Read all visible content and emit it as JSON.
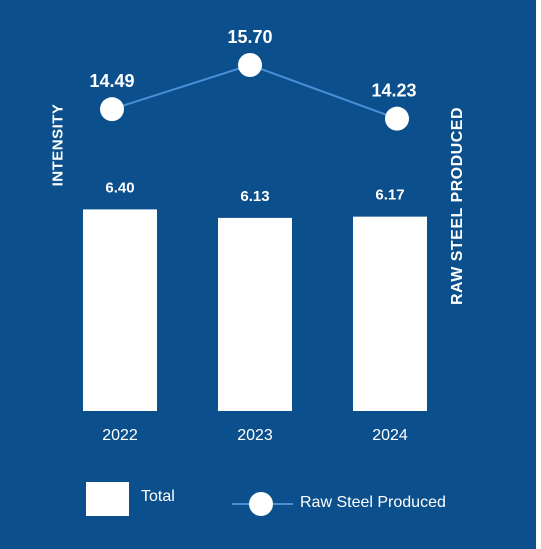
{
  "chart_data": {
    "type": "bar",
    "categories": [
      "2022",
      "2023",
      "2024"
    ],
    "series": [
      {
        "name": "Total",
        "type": "bar",
        "values": [
          6.4,
          6.13,
          6.17
        ]
      },
      {
        "name": "Raw Steel Produced",
        "type": "line",
        "values": [
          14.49,
          15.7,
          14.23
        ]
      }
    ],
    "value_labels": {
      "bars": [
        "6.40",
        "6.13",
        "6.17"
      ],
      "line": [
        "14.49",
        "15.70",
        "14.23"
      ]
    },
    "ylabel_left": "INTENSITY",
    "ylabel_right": "RAW STEEL PRODUCED",
    "legend_position": "bottom",
    "grid": false
  },
  "colors": {
    "background": "#0b4f8c",
    "bar": "#ffffff",
    "line": "#4a90d9",
    "marker": "#ffffff",
    "text": "#ffffff"
  }
}
